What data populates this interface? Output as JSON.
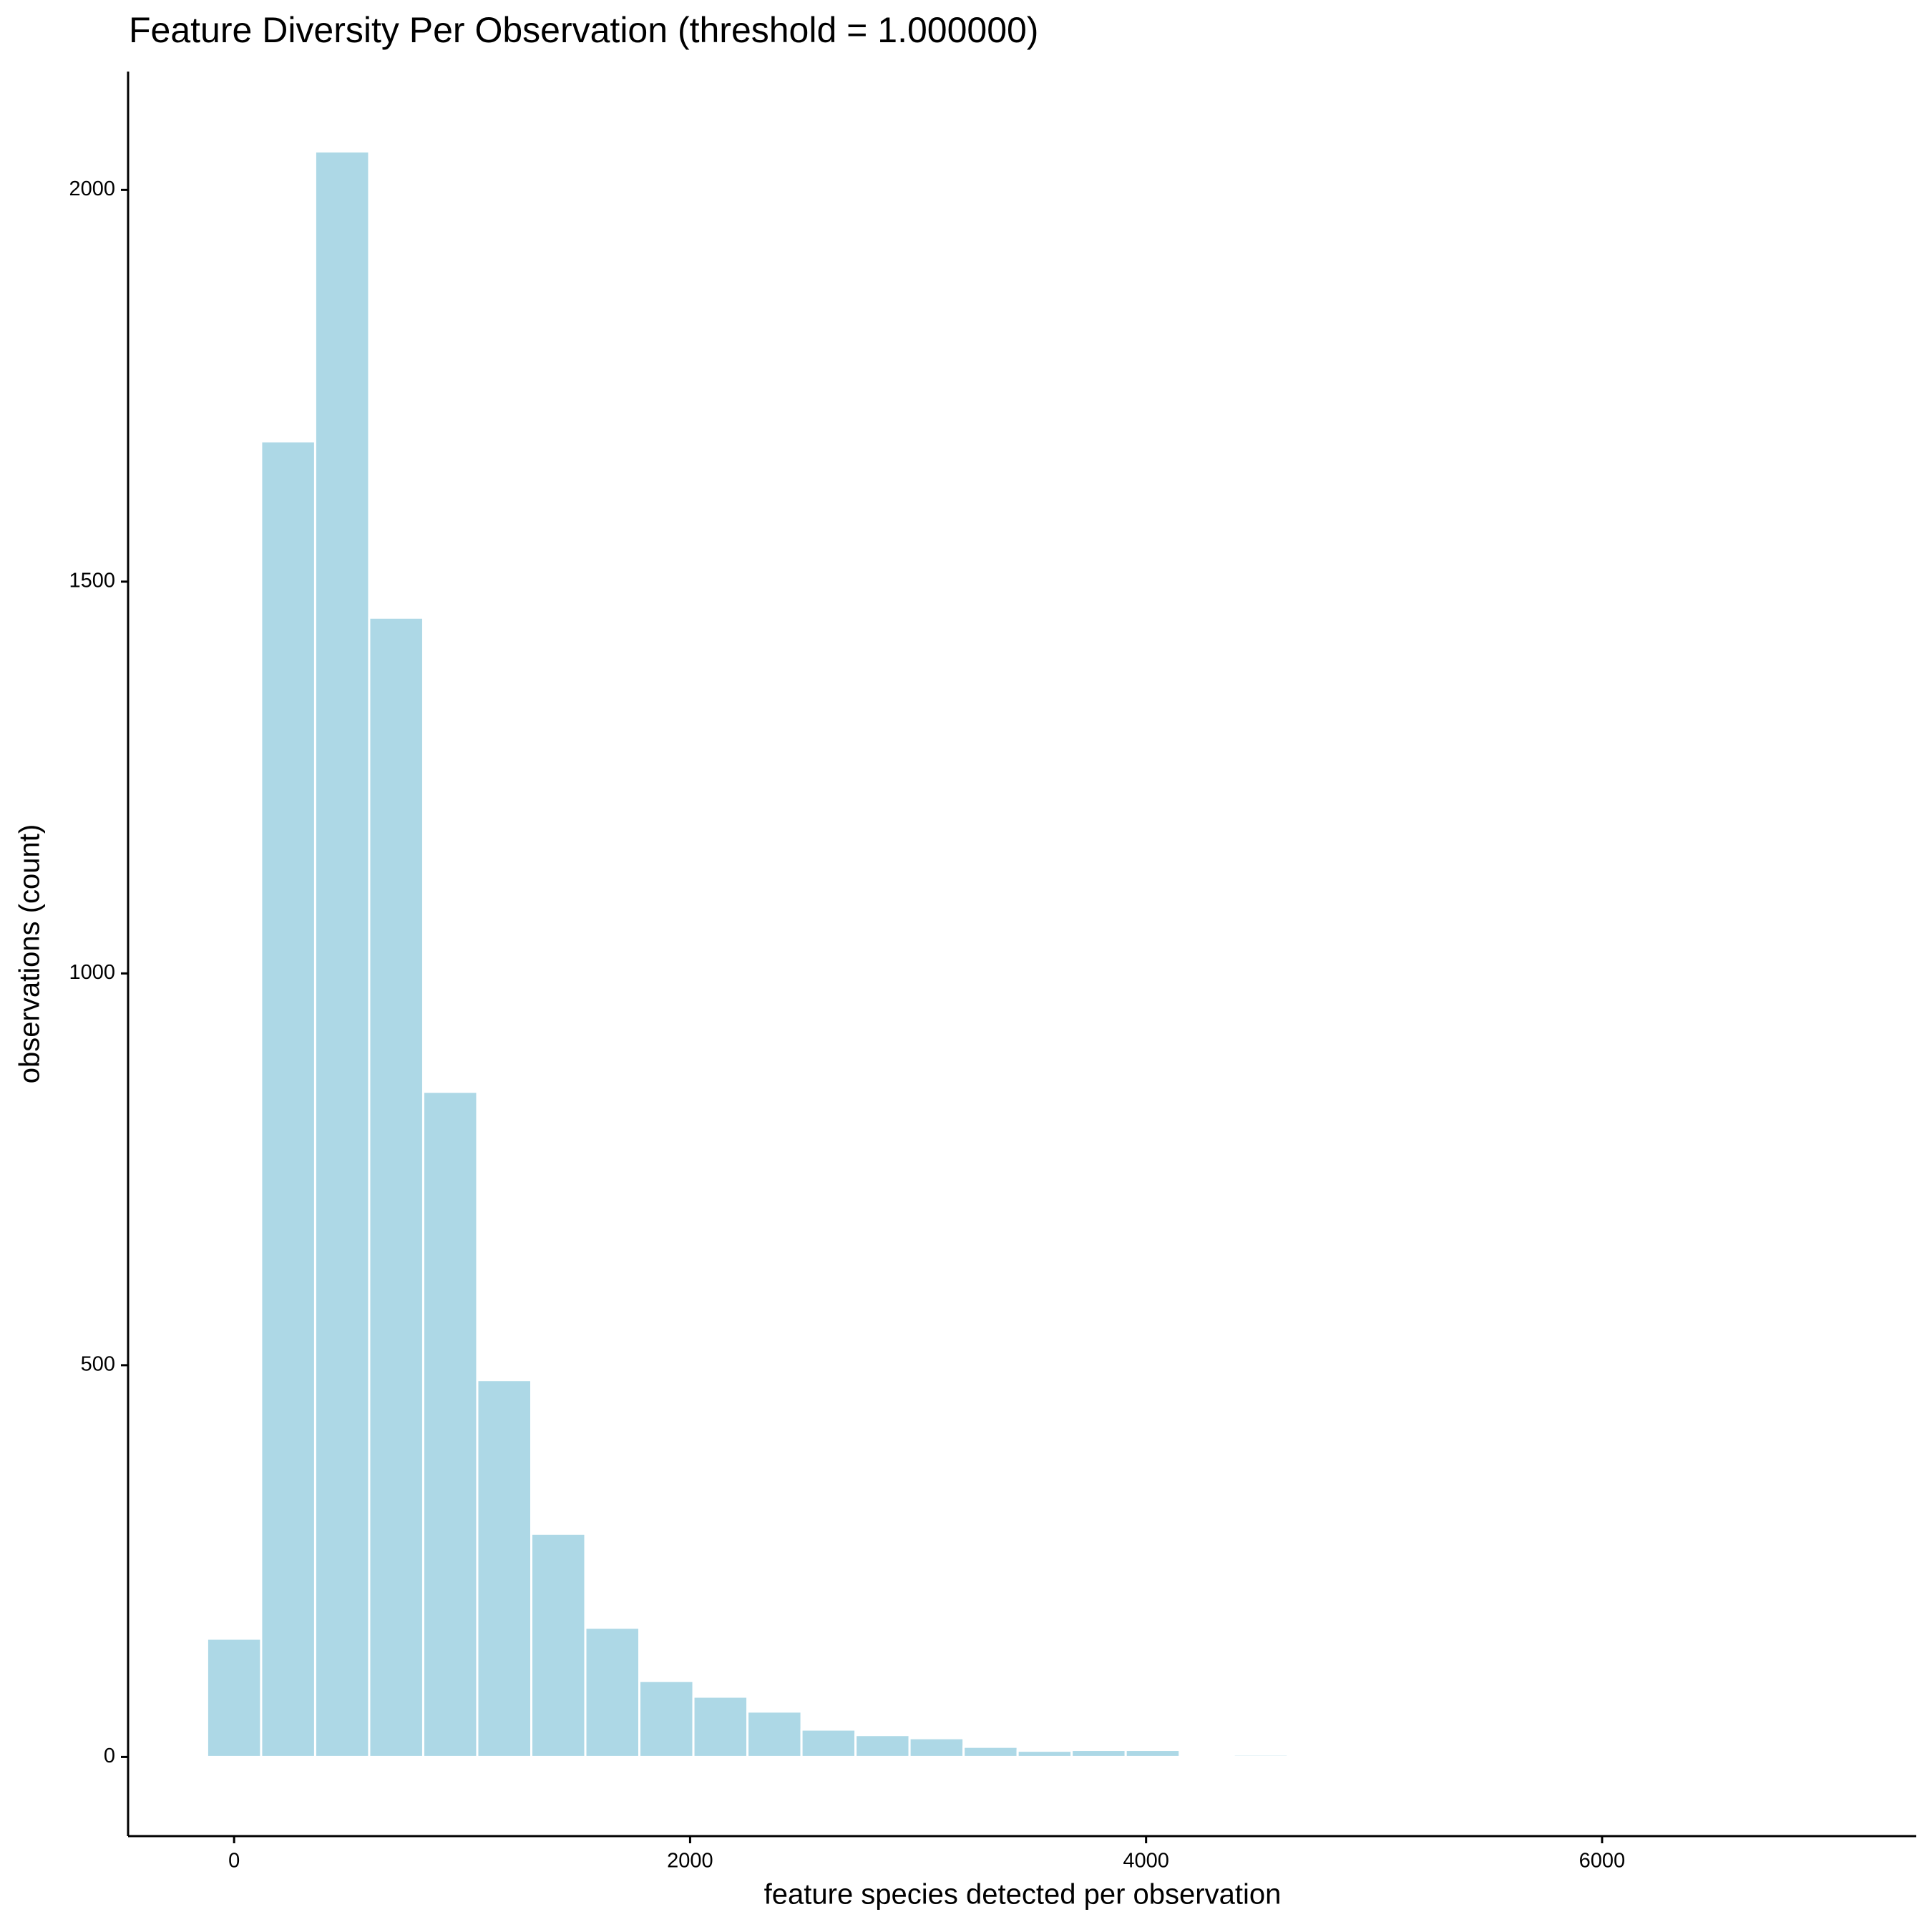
{
  "chart_data": {
    "type": "histogram",
    "title": "Feature Diversity Per Observation (threshold = 1.000000)",
    "x_label": "feature species detected per observation",
    "y_label": "observations (count)",
    "bins": [
      -118.5,
      118.5,
      355.5,
      592.5,
      829.5,
      1066.5,
      1303.5,
      1540.5,
      1777.5,
      2014.5,
      2251.5,
      2488.5,
      2725.5,
      2962.5,
      3199.5,
      3436.5,
      3673.5,
      3910.5,
      4147.5,
      4384.5,
      4621.5
    ],
    "values": [
      151,
      1679,
      2049,
      1454,
      849,
      481,
      285,
      165,
      97,
      77,
      58,
      35,
      28,
      24,
      13,
      8,
      9,
      9,
      0,
      3
    ],
    "color": "#add8e6",
    "xlim": [
      -465,
      7378
    ],
    "xticks": [
      0,
      2000,
      4000,
      6000
    ],
    "ylim": [
      -101,
      2151
    ],
    "yticks": [
      0,
      500,
      1000,
      1500,
      2000
    ],
    "grid": false
  }
}
